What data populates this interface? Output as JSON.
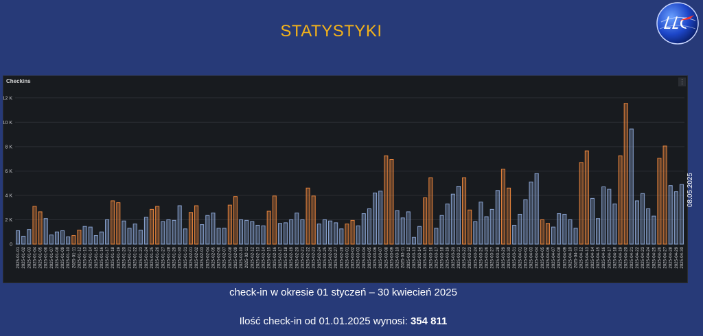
{
  "header": {
    "title": "STATYSTYKI"
  },
  "logo": {
    "icon": "ulc-logo-icon",
    "text": "ULC"
  },
  "side_date": "08.05.2025",
  "captions": {
    "period": "check-in w okresie 01 styczeń – 30 kwiecień 2025",
    "total_prefix": "Ilość check-in od 01.01.2025 wynosi: ",
    "total_value": "354 811"
  },
  "colors": {
    "weekday": "#8aa4d2",
    "weekend": "#e8843c",
    "grid": "#2c2f35",
    "panel": "#181b1f"
  },
  "chart_data": {
    "type": "bar",
    "title": "Checkins",
    "ylim": [
      0,
      13000
    ],
    "yticks": [
      0,
      2000,
      4000,
      6000,
      8000,
      10000,
      12000
    ],
    "ytick_labels": [
      "0",
      "2 K",
      "4 K",
      "6 K",
      "8 K",
      "10 K",
      "12 K"
    ],
    "categories": [
      "2025-01-01",
      "2025-01-02",
      "2025-01-03",
      "2025-01-04",
      "2025-01-05",
      "2025-01-06",
      "2025-01-07",
      "2025-01-08",
      "2025-01-09",
      "2025-01-10",
      "2025-01-11",
      "2025-01-12",
      "2025-01-13",
      "2025-01-14",
      "2025-01-15",
      "2025-01-16",
      "2025-01-17",
      "2025-01-18",
      "2025-01-19",
      "2025-01-20",
      "2025-01-21",
      "2025-01-22",
      "2025-01-23",
      "2025-01-24",
      "2025-01-25",
      "2025-01-26",
      "2025-01-27",
      "2025-01-28",
      "2025-01-29",
      "2025-01-30",
      "2025-01-31",
      "2025-02-01",
      "2025-02-02",
      "2025-02-03",
      "2025-02-04",
      "2025-02-05",
      "2025-02-06",
      "2025-02-07",
      "2025-02-08",
      "2025-02-09",
      "2025-02-10",
      "2025-02-11",
      "2025-02-12",
      "2025-02-13",
      "2025-02-14",
      "2025-02-15",
      "2025-02-16",
      "2025-02-17",
      "2025-02-18",
      "2025-02-19",
      "2025-02-20",
      "2025-02-21",
      "2025-02-22",
      "2025-02-23",
      "2025-02-24",
      "2025-02-25",
      "2025-02-26",
      "2025-02-27",
      "2025-02-28",
      "2025-03-01",
      "2025-03-02",
      "2025-03-03",
      "2025-03-04",
      "2025-03-05",
      "2025-03-06",
      "2025-03-07",
      "2025-03-08",
      "2025-03-09",
      "2025-03-10",
      "2025-03-11",
      "2025-03-12",
      "2025-03-13",
      "2025-03-14",
      "2025-03-15",
      "2025-03-16",
      "2025-03-17",
      "2025-03-18",
      "2025-03-19",
      "2025-03-20",
      "2025-03-21",
      "2025-03-22",
      "2025-03-23",
      "2025-03-24",
      "2025-03-25",
      "2025-03-26",
      "2025-03-27",
      "2025-03-28",
      "2025-03-29",
      "2025-03-30",
      "2025-03-31",
      "2025-04-01",
      "2025-04-02",
      "2025-04-03",
      "2025-04-04",
      "2025-04-05",
      "2025-04-06",
      "2025-04-07",
      "2025-04-08",
      "2025-04-09",
      "2025-04-10",
      "2025-04-11",
      "2025-04-12",
      "2025-04-13",
      "2025-04-14",
      "2025-04-15",
      "2025-04-16",
      "2025-04-17",
      "2025-04-18",
      "2025-04-19",
      "2025-04-20",
      "2025-04-21",
      "2025-04-22",
      "2025-04-23",
      "2025-04-24",
      "2025-04-25",
      "2025-04-26",
      "2025-04-27",
      "2025-04-28",
      "2025-04-29",
      "2025-04-30"
    ],
    "values": [
      1100,
      650,
      1200,
      3100,
      2650,
      2100,
      750,
      1000,
      1100,
      600,
      700,
      1150,
      1450,
      1400,
      700,
      1000,
      2000,
      3550,
      3400,
      1900,
      1300,
      1650,
      1150,
      2200,
      2850,
      3100,
      1850,
      2000,
      1950,
      3150,
      1250,
      2600,
      3150,
      1600,
      2350,
      2550,
      1300,
      1300,
      3200,
      3900,
      2000,
      1950,
      1850,
      1550,
      1500,
      2700,
      3950,
      1700,
      1750,
      2000,
      2550,
      2000,
      4600,
      3950,
      1650,
      2000,
      1900,
      1750,
      1250,
      1650,
      1950,
      1500,
      2500,
      2900,
      4200,
      4350,
      7250,
      6950,
      2750,
      2150,
      2650,
      550,
      1450,
      3800,
      5450,
      1300,
      2350,
      3300,
      4100,
      4750,
      5450,
      2800,
      1850,
      3450,
      2250,
      2850,
      4400,
      6150,
      4600,
      1550,
      2450,
      3650,
      5100,
      5800,
      2000,
      1700,
      1400,
      2500,
      2450,
      2000,
      1300,
      6700,
      7650,
      3750,
      2100,
      4700,
      4500,
      3300,
      7250,
      11550,
      9450,
      3550,
      4150,
      2900,
      2300,
      7050,
      8050,
      4800,
      4300,
      4900
    ],
    "weekend_indices": [
      3,
      4,
      10,
      11,
      17,
      18,
      24,
      25,
      31,
      32,
      38,
      39,
      45,
      46,
      52,
      53,
      59,
      60,
      66,
      67,
      73,
      74,
      80,
      81,
      87,
      88,
      94,
      95,
      101,
      102,
      108,
      109,
      115,
      116
    ]
  }
}
